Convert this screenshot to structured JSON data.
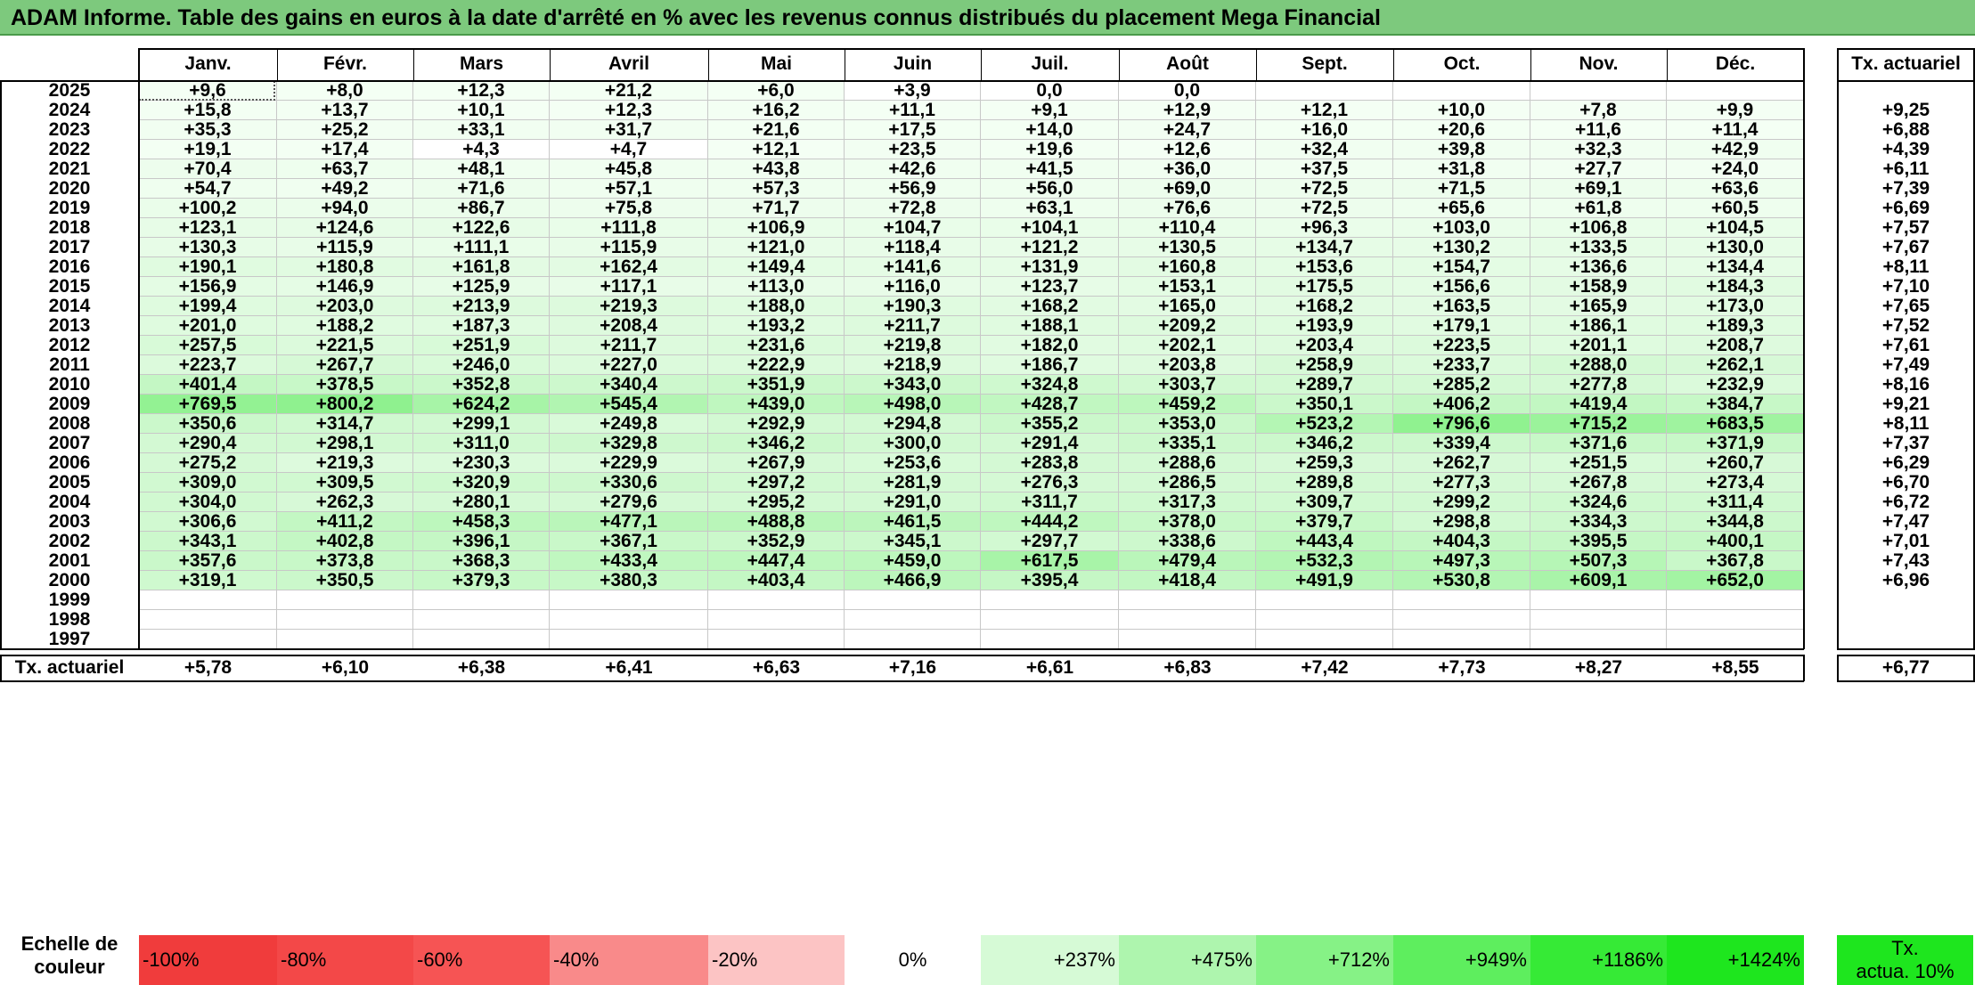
{
  "title": "ADAM Informe. Table des gains en euros à la date d'arrêté en % avec les revenus connus distribués du placement Mega Financial",
  "months": [
    "Janv.",
    "Févr.",
    "Mars",
    "Avril",
    "Mai",
    "Juin",
    "Juil.",
    "Août",
    "Sept.",
    "Oct.",
    "Nov.",
    "Déc."
  ],
  "tx_header": "Tx. actuariel",
  "rows": [
    {
      "year": "2025",
      "values": [
        "+9,6",
        "+8,0",
        "+12,3",
        "+21,2",
        "+6,0",
        "+3,9",
        "0,0",
        "0,0",
        "",
        "",
        "",
        ""
      ],
      "tx": ""
    },
    {
      "year": "2024",
      "values": [
        "+15,8",
        "+13,7",
        "+10,1",
        "+12,3",
        "+16,2",
        "+11,1",
        "+9,1",
        "+12,9",
        "+12,1",
        "+10,0",
        "+7,8",
        "+9,9"
      ],
      "tx": "+9,25"
    },
    {
      "year": "2023",
      "values": [
        "+35,3",
        "+25,2",
        "+33,1",
        "+31,7",
        "+21,6",
        "+17,5",
        "+14,0",
        "+24,7",
        "+16,0",
        "+20,6",
        "+11,6",
        "+11,4"
      ],
      "tx": "+6,88"
    },
    {
      "year": "2022",
      "values": [
        "+19,1",
        "+17,4",
        "+4,3",
        "+4,7",
        "+12,1",
        "+23,5",
        "+19,6",
        "+12,6",
        "+32,4",
        "+39,8",
        "+32,3",
        "+42,9"
      ],
      "tx": "+4,39"
    },
    {
      "year": "2021",
      "values": [
        "+70,4",
        "+63,7",
        "+48,1",
        "+45,8",
        "+43,8",
        "+42,6",
        "+41,5",
        "+36,0",
        "+37,5",
        "+31,8",
        "+27,7",
        "+24,0"
      ],
      "tx": "+6,11"
    },
    {
      "year": "2020",
      "values": [
        "+54,7",
        "+49,2",
        "+71,6",
        "+57,1",
        "+57,3",
        "+56,9",
        "+56,0",
        "+69,0",
        "+72,5",
        "+71,5",
        "+69,1",
        "+63,6"
      ],
      "tx": "+7,39"
    },
    {
      "year": "2019",
      "values": [
        "+100,2",
        "+94,0",
        "+86,7",
        "+75,8",
        "+71,7",
        "+72,8",
        "+63,1",
        "+76,6",
        "+72,5",
        "+65,6",
        "+61,8",
        "+60,5"
      ],
      "tx": "+6,69"
    },
    {
      "year": "2018",
      "values": [
        "+123,1",
        "+124,6",
        "+122,6",
        "+111,8",
        "+106,9",
        "+104,7",
        "+104,1",
        "+110,4",
        "+96,3",
        "+103,0",
        "+106,8",
        "+104,5"
      ],
      "tx": "+7,57"
    },
    {
      "year": "2017",
      "values": [
        "+130,3",
        "+115,9",
        "+111,1",
        "+115,9",
        "+121,0",
        "+118,4",
        "+121,2",
        "+130,5",
        "+134,7",
        "+130,2",
        "+133,5",
        "+130,0"
      ],
      "tx": "+7,67"
    },
    {
      "year": "2016",
      "values": [
        "+190,1",
        "+180,8",
        "+161,8",
        "+162,4",
        "+149,4",
        "+141,6",
        "+131,9",
        "+160,8",
        "+153,6",
        "+154,7",
        "+136,6",
        "+134,4"
      ],
      "tx": "+8,11"
    },
    {
      "year": "2015",
      "values": [
        "+156,9",
        "+146,9",
        "+125,9",
        "+117,1",
        "+113,0",
        "+116,0",
        "+123,7",
        "+153,1",
        "+175,5",
        "+156,6",
        "+158,9",
        "+184,3"
      ],
      "tx": "+7,10"
    },
    {
      "year": "2014",
      "values": [
        "+199,4",
        "+203,0",
        "+213,9",
        "+219,3",
        "+188,0",
        "+190,3",
        "+168,2",
        "+165,0",
        "+168,2",
        "+163,5",
        "+165,9",
        "+173,0"
      ],
      "tx": "+7,65"
    },
    {
      "year": "2013",
      "values": [
        "+201,0",
        "+188,2",
        "+187,3",
        "+208,4",
        "+193,2",
        "+211,7",
        "+188,1",
        "+209,2",
        "+193,9",
        "+179,1",
        "+186,1",
        "+189,3"
      ],
      "tx": "+7,52"
    },
    {
      "year": "2012",
      "values": [
        "+257,5",
        "+221,5",
        "+251,9",
        "+211,7",
        "+231,6",
        "+219,8",
        "+182,0",
        "+202,1",
        "+203,4",
        "+223,5",
        "+201,1",
        "+208,7"
      ],
      "tx": "+7,61"
    },
    {
      "year": "2011",
      "values": [
        "+223,7",
        "+267,7",
        "+246,0",
        "+227,0",
        "+222,9",
        "+218,9",
        "+186,7",
        "+203,8",
        "+258,9",
        "+233,7",
        "+288,0",
        "+262,1"
      ],
      "tx": "+7,49"
    },
    {
      "year": "2010",
      "values": [
        "+401,4",
        "+378,5",
        "+352,8",
        "+340,4",
        "+351,9",
        "+343,0",
        "+324,8",
        "+303,7",
        "+289,7",
        "+285,2",
        "+277,8",
        "+232,9"
      ],
      "tx": "+8,16"
    },
    {
      "year": "2009",
      "values": [
        "+769,5",
        "+800,2",
        "+624,2",
        "+545,4",
        "+439,0",
        "+498,0",
        "+428,7",
        "+459,2",
        "+350,1",
        "+406,2",
        "+419,4",
        "+384,7"
      ],
      "tx": "+9,21"
    },
    {
      "year": "2008",
      "values": [
        "+350,6",
        "+314,7",
        "+299,1",
        "+249,8",
        "+292,9",
        "+294,8",
        "+355,2",
        "+353,0",
        "+523,2",
        "+796,6",
        "+715,2",
        "+683,5"
      ],
      "tx": "+8,11"
    },
    {
      "year": "2007",
      "values": [
        "+290,4",
        "+298,1",
        "+311,0",
        "+329,8",
        "+346,2",
        "+300,0",
        "+291,4",
        "+335,1",
        "+346,2",
        "+339,4",
        "+371,6",
        "+371,9"
      ],
      "tx": "+7,37"
    },
    {
      "year": "2006",
      "values": [
        "+275,2",
        "+219,3",
        "+230,3",
        "+229,9",
        "+267,9",
        "+253,6",
        "+283,8",
        "+288,6",
        "+259,3",
        "+262,7",
        "+251,5",
        "+260,7"
      ],
      "tx": "+6,29"
    },
    {
      "year": "2005",
      "values": [
        "+309,0",
        "+309,5",
        "+320,9",
        "+330,6",
        "+297,2",
        "+281,9",
        "+276,3",
        "+286,5",
        "+289,8",
        "+277,3",
        "+267,8",
        "+273,4"
      ],
      "tx": "+6,70"
    },
    {
      "year": "2004",
      "values": [
        "+304,0",
        "+262,3",
        "+280,1",
        "+279,6",
        "+295,2",
        "+291,0",
        "+311,7",
        "+317,3",
        "+309,7",
        "+299,2",
        "+324,6",
        "+311,4"
      ],
      "tx": "+6,72"
    },
    {
      "year": "2003",
      "values": [
        "+306,6",
        "+411,2",
        "+458,3",
        "+477,1",
        "+488,8",
        "+461,5",
        "+444,2",
        "+378,0",
        "+379,7",
        "+298,8",
        "+334,3",
        "+344,8"
      ],
      "tx": "+7,47"
    },
    {
      "year": "2002",
      "values": [
        "+343,1",
        "+402,8",
        "+396,1",
        "+367,1",
        "+352,9",
        "+345,1",
        "+297,7",
        "+338,6",
        "+443,4",
        "+404,3",
        "+395,5",
        "+400,1"
      ],
      "tx": "+7,01"
    },
    {
      "year": "2001",
      "values": [
        "+357,6",
        "+373,8",
        "+368,3",
        "+433,4",
        "+447,4",
        "+459,0",
        "+617,5",
        "+479,4",
        "+532,3",
        "+497,3",
        "+507,3",
        "+367,8"
      ],
      "tx": "+7,43"
    },
    {
      "year": "2000",
      "values": [
        "+319,1",
        "+350,5",
        "+379,3",
        "+380,3",
        "+403,4",
        "+466,9",
        "+395,4",
        "+418,4",
        "+491,9",
        "+530,8",
        "+609,1",
        "+652,0"
      ],
      "tx": "+6,96"
    },
    {
      "year": "1999",
      "values": [
        "",
        "",
        "",
        "",
        "",
        "",
        "",
        "",
        "",
        "",
        "",
        ""
      ],
      "tx": ""
    },
    {
      "year": "1998",
      "values": [
        "",
        "",
        "",
        "",
        "",
        "",
        "",
        "",
        "",
        "",
        "",
        ""
      ],
      "tx": ""
    },
    {
      "year": "1997",
      "values": [
        "",
        "",
        "",
        "",
        "",
        "",
        "",
        "",
        "",
        "",
        "",
        ""
      ],
      "tx": ""
    }
  ],
  "footer": {
    "label": "Tx. actuariel",
    "values": [
      "+5,78",
      "+6,10",
      "+6,38",
      "+6,41",
      "+6,63",
      "+7,16",
      "+6,61",
      "+6,83",
      "+7,42",
      "+7,73",
      "+8,27",
      "+8,55"
    ],
    "tx": "+6,77"
  },
  "scale": {
    "label_line1": "Echelle de",
    "label_line2": "couleur",
    "items": [
      {
        "text": "-100%",
        "color": "#f03c3c"
      },
      {
        "text": "-80%",
        "color": "#f34848"
      },
      {
        "text": "-60%",
        "color": "#f65454"
      },
      {
        "text": "-40%",
        "color": "#f98a8a"
      },
      {
        "text": "-20%",
        "color": "#fcc4c4"
      },
      {
        "text": "0%",
        "color": "#ffffff"
      },
      {
        "text": "+237%",
        "color": "#d6fad6"
      },
      {
        "text": "+475%",
        "color": "#aef5ae"
      },
      {
        "text": "+712%",
        "color": "#86f286"
      },
      {
        "text": "+949%",
        "color": "#5eee5e"
      },
      {
        "text": "+1186%",
        "color": "#36ea36"
      },
      {
        "text": "+1424%",
        "color": "#1ee61e"
      }
    ],
    "tx_line1": "Tx.",
    "tx_line2": "actua. 10%",
    "tx_color": "#1ee61e"
  }
}
